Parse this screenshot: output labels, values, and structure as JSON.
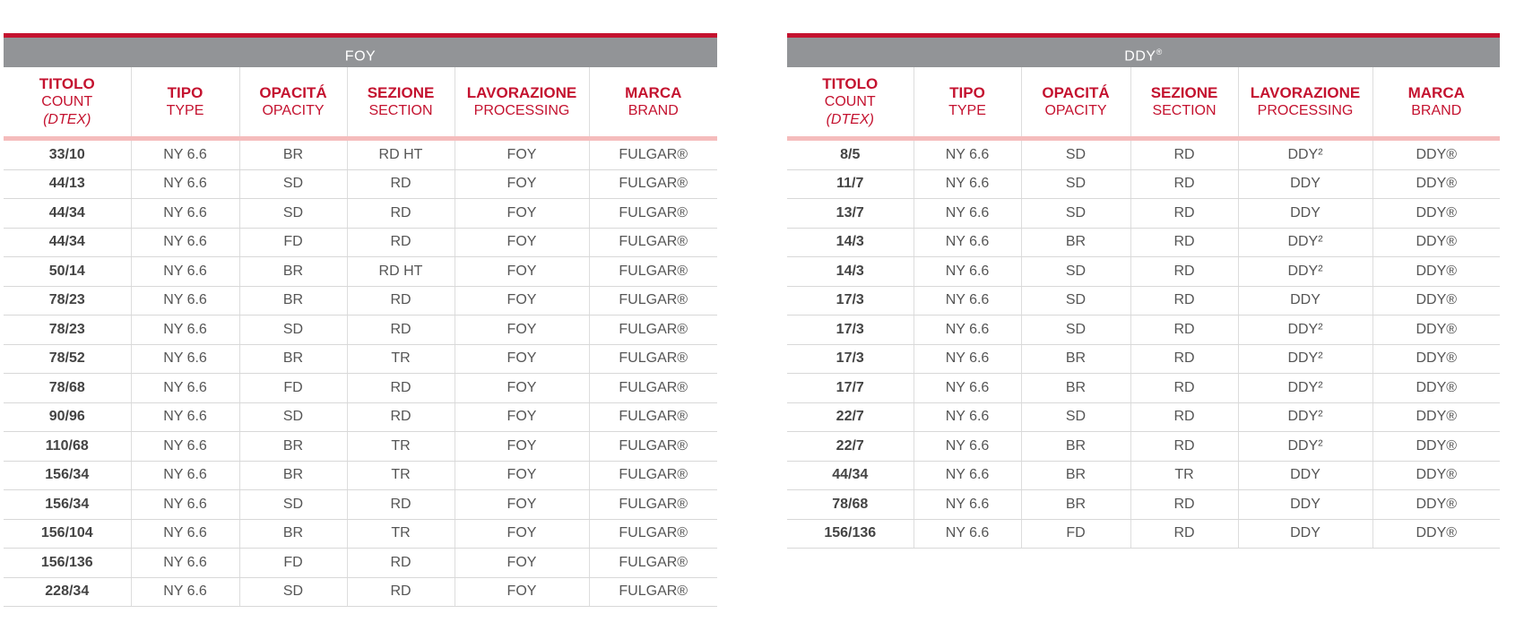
{
  "colors": {
    "accent": "#c4122f",
    "band": "#929497",
    "divider": "#f5bcbc"
  },
  "headers": [
    {
      "it": "TITOLO",
      "en": "COUNT",
      "unit": "(DTEX)"
    },
    {
      "it": "TIPO",
      "en": "TYPE"
    },
    {
      "it": "OPACITÁ",
      "en": "OPACITY"
    },
    {
      "it": "SEZIONE",
      "en": "SECTION"
    },
    {
      "it": "LAVORAZIONE",
      "en": "PROCESSING"
    },
    {
      "it": "MARCA",
      "en": "BRAND"
    }
  ],
  "tables": [
    {
      "title": "FOY",
      "title_sup": "",
      "rows": [
        [
          "33/10",
          "NY 6.6",
          "BR",
          "RD HT",
          "FOY",
          "FULGAR®"
        ],
        [
          "44/13",
          "NY 6.6",
          "SD",
          "RD",
          "FOY",
          "FULGAR®"
        ],
        [
          "44/34",
          "NY 6.6",
          "SD",
          "RD",
          "FOY",
          "FULGAR®"
        ],
        [
          "44/34",
          "NY 6.6",
          "FD",
          "RD",
          "FOY",
          "FULGAR®"
        ],
        [
          "50/14",
          "NY 6.6",
          "BR",
          "RD HT",
          "FOY",
          "FULGAR®"
        ],
        [
          "78/23",
          "NY 6.6",
          "BR",
          "RD",
          "FOY",
          "FULGAR®"
        ],
        [
          "78/23",
          "NY 6.6",
          "SD",
          "RD",
          "FOY",
          "FULGAR®"
        ],
        [
          "78/52",
          "NY 6.6",
          "BR",
          "TR",
          "FOY",
          "FULGAR®"
        ],
        [
          "78/68",
          "NY 6.6",
          "FD",
          "RD",
          "FOY",
          "FULGAR®"
        ],
        [
          "90/96",
          "NY 6.6",
          "SD",
          "RD",
          "FOY",
          "FULGAR®"
        ],
        [
          "110/68",
          "NY 6.6",
          "BR",
          "TR",
          "FOY",
          "FULGAR®"
        ],
        [
          "156/34",
          "NY 6.6",
          "BR",
          "TR",
          "FOY",
          "FULGAR®"
        ],
        [
          "156/34",
          "NY 6.6",
          "SD",
          "RD",
          "FOY",
          "FULGAR®"
        ],
        [
          "156/104",
          "NY 6.6",
          "BR",
          "TR",
          "FOY",
          "FULGAR®"
        ],
        [
          "156/136",
          "NY 6.6",
          "FD",
          "RD",
          "FOY",
          "FULGAR®"
        ],
        [
          "228/34",
          "NY 6.6",
          "SD",
          "RD",
          "FOY",
          "FULGAR®"
        ]
      ]
    },
    {
      "title": "DDY",
      "title_sup": "®",
      "rows": [
        [
          "8/5",
          "NY 6.6",
          "SD",
          "RD",
          "DDY²",
          "DDY®"
        ],
        [
          "11/7",
          "NY 6.6",
          "SD",
          "RD",
          "DDY",
          "DDY®"
        ],
        [
          "13/7",
          "NY 6.6",
          "SD",
          "RD",
          "DDY",
          "DDY®"
        ],
        [
          "14/3",
          "NY 6.6",
          "BR",
          "RD",
          "DDY²",
          "DDY®"
        ],
        [
          "14/3",
          "NY 6.6",
          "SD",
          "RD",
          "DDY²",
          "DDY®"
        ],
        [
          "17/3",
          "NY 6.6",
          "SD",
          "RD",
          "DDY",
          "DDY®"
        ],
        [
          "17/3",
          "NY 6.6",
          "SD",
          "RD",
          "DDY²",
          "DDY®"
        ],
        [
          "17/3",
          "NY 6.6",
          "BR",
          "RD",
          "DDY²",
          "DDY®"
        ],
        [
          "17/7",
          "NY 6.6",
          "BR",
          "RD",
          "DDY²",
          "DDY®"
        ],
        [
          "22/7",
          "NY 6.6",
          "SD",
          "RD",
          "DDY²",
          "DDY®"
        ],
        [
          "22/7",
          "NY 6.6",
          "BR",
          "RD",
          "DDY²",
          "DDY®"
        ],
        [
          "44/34",
          "NY 6.6",
          "BR",
          "TR",
          "DDY",
          "DDY®"
        ],
        [
          "78/68",
          "NY 6.6",
          "BR",
          "RD",
          "DDY",
          "DDY®"
        ],
        [
          "156/136",
          "NY 6.6",
          "FD",
          "RD",
          "DDY",
          "DDY®"
        ]
      ]
    }
  ]
}
